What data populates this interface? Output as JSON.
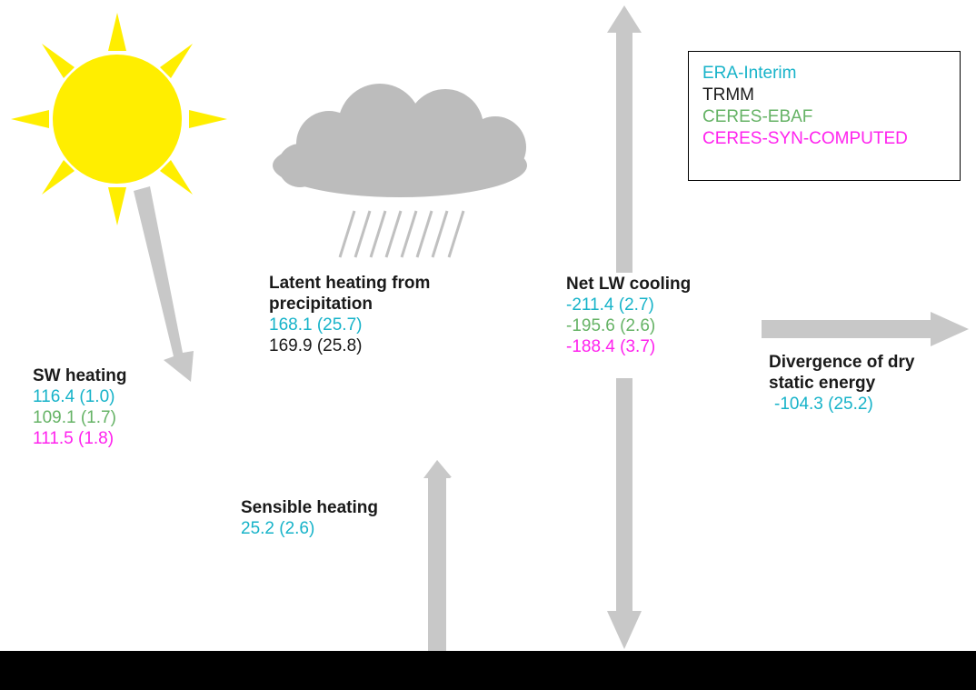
{
  "legend": {
    "entries": [
      {
        "label": "ERA-Interim",
        "color": "#17b3c9"
      },
      {
        "label": "TRMM",
        "color": "#1a1a1a"
      },
      {
        "label": "CERES-EBAF",
        "color": "#66b366"
      },
      {
        "label": "CERES-SYN-COMPUTED",
        "color": "#ff22ee"
      }
    ]
  },
  "sw_heating": {
    "title": "SW heating",
    "era": "116.4 (1.0)",
    "ceres_ebaf": "109.1 (1.7)",
    "ceres_syn": "111.5 (1.8)"
  },
  "latent_heating": {
    "title_line1": "Latent heating from",
    "title_line2": "precipitation",
    "era": "168.1 (25.7)",
    "trmm": "169.9 (25.8)"
  },
  "net_lw_cooling": {
    "title": "Net LW cooling",
    "era": "-211.4 (2.7)",
    "ceres_ebaf": "-195.6 (2.6)",
    "ceres_syn": "-188.4 (3.7)"
  },
  "divergence": {
    "title_line1": "Divergence of dry",
    "title_line2": "static energy",
    "era": "-104.3 (25.2)"
  },
  "sensible_heating": {
    "title": "Sensible heating",
    "era": "25.2 (2.6)"
  },
  "colors": {
    "arrow": "#c8c8c8",
    "sun": "#ffee00",
    "cloud": "#bcbcbc",
    "ground": "#000000"
  }
}
